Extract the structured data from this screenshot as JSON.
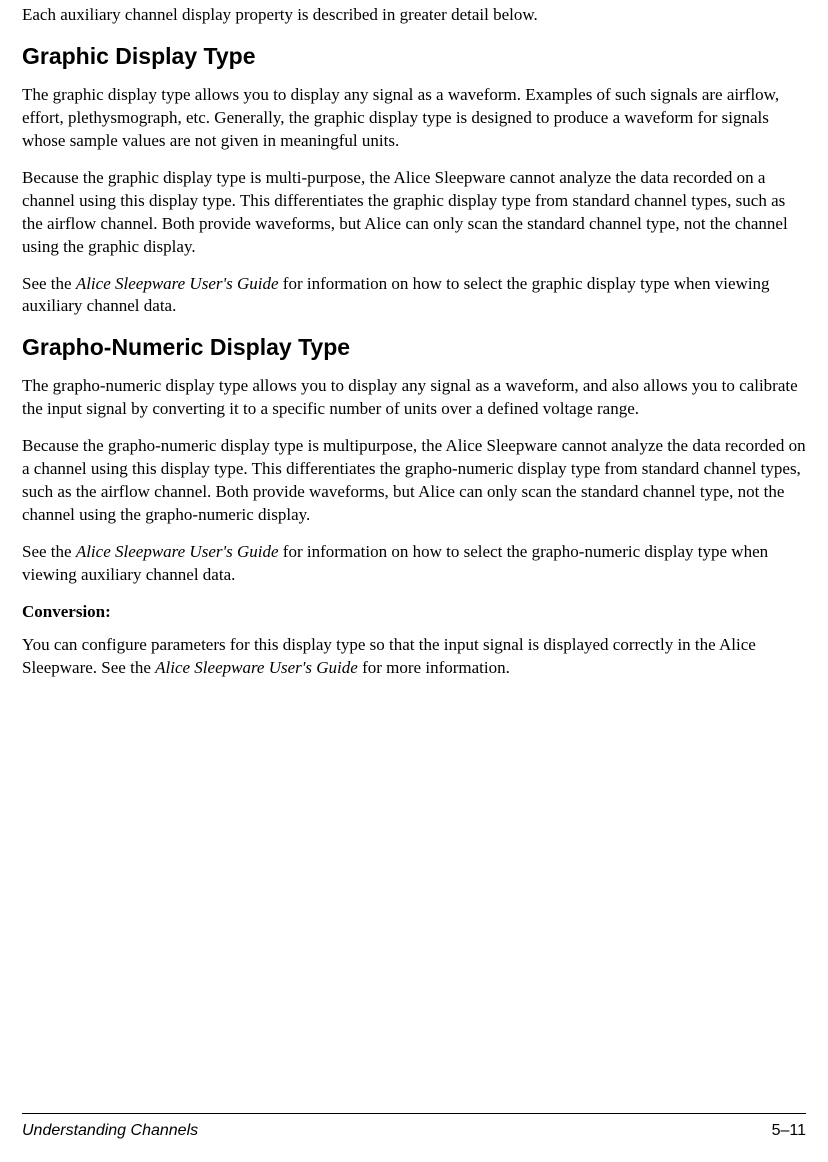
{
  "intro": "Each auxiliary channel display property is described in greater detail below.",
  "section1": {
    "heading": "Graphic Display Type",
    "p1": "The graphic display type allows you to display any signal as a waveform. Examples of such signals are airflow, effort, plethysmograph, etc. Generally, the graphic display type is designed to produce a waveform for signals whose sample values are not given in meaningful units.",
    "p2": "Because the graphic display type is multi-purpose, the Alice Sleepware cannot analyze the data recorded on a channel using this display type. This differentiates the graphic display type from standard channel types, such as the airflow channel. Both provide waveforms, but Alice can only scan the standard channel type, not the channel using the graphic display.",
    "p3_prefix": "See the ",
    "p3_italic": "Alice Sleepware User's Guide",
    "p3_suffix": " for information on how to select the graphic display type when viewing auxiliary channel data."
  },
  "section2": {
    "heading": "Grapho-Numeric Display Type",
    "p1": "The grapho-numeric display type allows you to display any signal as a waveform, and also allows you to calibrate the input signal by converting it to a specific number of units over a defined voltage range.",
    "p2": "Because the grapho-numeric display type is multipurpose, the Alice Sleepware cannot analyze the data recorded on a channel using this display type. This differentiates the grapho-numeric display type from standard channel types, such as the airflow channel. Both provide waveforms, but Alice can only scan the standard channel type, not the channel using the grapho-numeric display.",
    "p3_prefix": "See the ",
    "p3_italic": "Alice Sleepware User's Guide",
    "p3_suffix": " for information on how to select the grapho-numeric display type when viewing auxiliary channel data.",
    "subheading": "Conversion",
    "p4_prefix": "You can configure parameters for this display type so that the input signal is displayed correctly in the Alice Sleepware. See the ",
    "p4_italic": "Alice Sleepware User's Guide",
    "p4_suffix": " for more information."
  },
  "footer": {
    "left": "Understanding Channels",
    "right": "5–11"
  }
}
